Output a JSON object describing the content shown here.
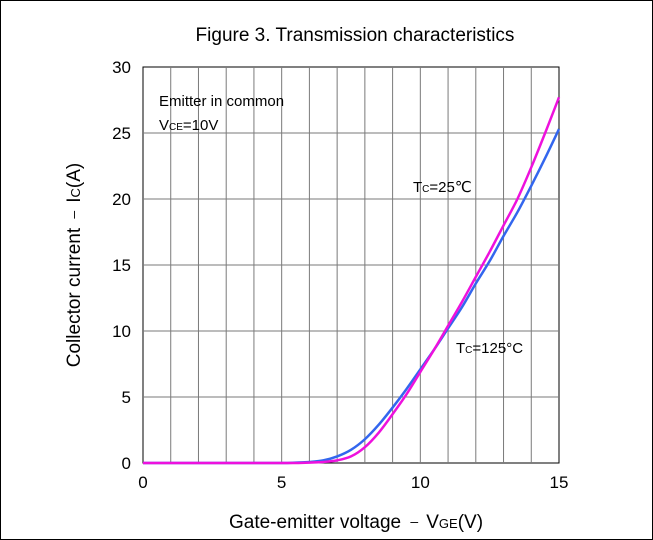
{
  "chart_data": {
    "type": "line",
    "title": "Figure 3. Transmission characteristics",
    "xlabel": {
      "main": "Gate-emitter voltage ",
      "dash": "–",
      "var": "V",
      "sub": "GE",
      "unit": "(V)"
    },
    "ylabel": {
      "main": "Collector current ",
      "dash": "–",
      "var": "I",
      "sub": "C",
      "unit": "(A)"
    },
    "xlim": [
      0,
      15
    ],
    "ylim": [
      0,
      30
    ],
    "xticks": [
      0,
      5,
      10,
      15
    ],
    "yticks": [
      0,
      5,
      10,
      15,
      20,
      25,
      30
    ],
    "grid": true,
    "annotation": {
      "line1": "Emitter in common",
      "line2": {
        "var": "V",
        "sub": "CE",
        "rest": "=10V"
      }
    },
    "series": [
      {
        "name": "TC=25°C",
        "label": {
          "var": "T",
          "sub": "C",
          "rest": "=25℃"
        },
        "color": "#ee11dd",
        "x": [
          0,
          1,
          2,
          3,
          4,
          5,
          5.5,
          6,
          6.5,
          7,
          7.5,
          8,
          8.5,
          9,
          9.5,
          10,
          10.5,
          11,
          11.5,
          12,
          12.5,
          13,
          13.5,
          14,
          14.5,
          15
        ],
        "y": [
          0,
          0,
          0,
          0,
          0,
          0,
          0,
          0.03,
          0.08,
          0.2,
          0.5,
          1.2,
          2.3,
          3.7,
          5.2,
          6.9,
          8.6,
          10.4,
          12.2,
          14.1,
          16.0,
          18.0,
          20.0,
          22.4,
          25.0,
          27.7
        ]
      },
      {
        "name": "TC=125°C",
        "label": {
          "var": "T",
          "sub": "C",
          "rest": "=125°C"
        },
        "color": "#3366ee",
        "x": [
          0,
          1,
          2,
          3,
          4,
          5,
          5.5,
          6,
          6.5,
          7,
          7.5,
          8,
          8.5,
          9,
          9.5,
          10,
          10.5,
          11,
          11.5,
          12,
          12.5,
          13,
          13.5,
          14,
          14.5,
          15
        ],
        "y": [
          0,
          0,
          0,
          0,
          0,
          0,
          0.03,
          0.08,
          0.2,
          0.5,
          1.0,
          1.8,
          2.9,
          4.2,
          5.6,
          7.1,
          8.6,
          10.2,
          11.8,
          13.6,
          15.3,
          17.2,
          19.0,
          21.0,
          23.1,
          25.3
        ]
      }
    ]
  }
}
